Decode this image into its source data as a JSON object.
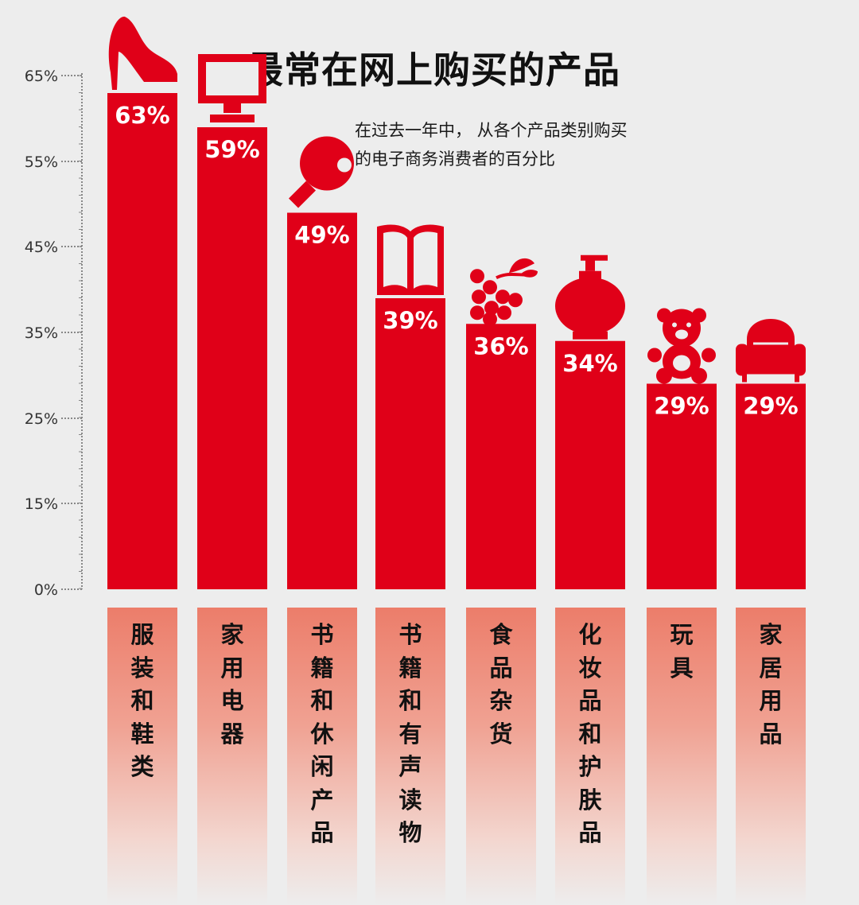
{
  "chart_data": {
    "type": "bar",
    "title": "最常在网上购买的产品",
    "subtitle_lines": [
      "在过去一年中， 从各个产品类别购买",
      "的电子商务消费者的百分比"
    ],
    "categories": [
      "服装和鞋类",
      "家用电器",
      "书籍和休闲产品",
      "书籍和有声读物",
      "食品杂货",
      "化妆品和护肤品",
      "玩具",
      "家居用品"
    ],
    "values": [
      63,
      59,
      49,
      39,
      36,
      34,
      29,
      29
    ],
    "value_labels": [
      "63%",
      "59%",
      "49%",
      "39%",
      "36%",
      "34%",
      "29%",
      "29%"
    ],
    "icons": [
      "high-heel-icon",
      "monitor-icon",
      "ping-pong-paddle-icon",
      "open-book-icon",
      "grapes-icon",
      "lotion-bottle-icon",
      "teddy-bear-icon",
      "armchair-icon"
    ],
    "y_ticks": [
      "0%",
      "15%",
      "25%",
      "35%",
      "45%",
      "55%",
      "65%"
    ],
    "ylim": [
      0,
      65
    ],
    "grid": false,
    "colors": {
      "bar": "#e00018",
      "bar_text": "#ffffff",
      "axis": "#888888"
    }
  }
}
